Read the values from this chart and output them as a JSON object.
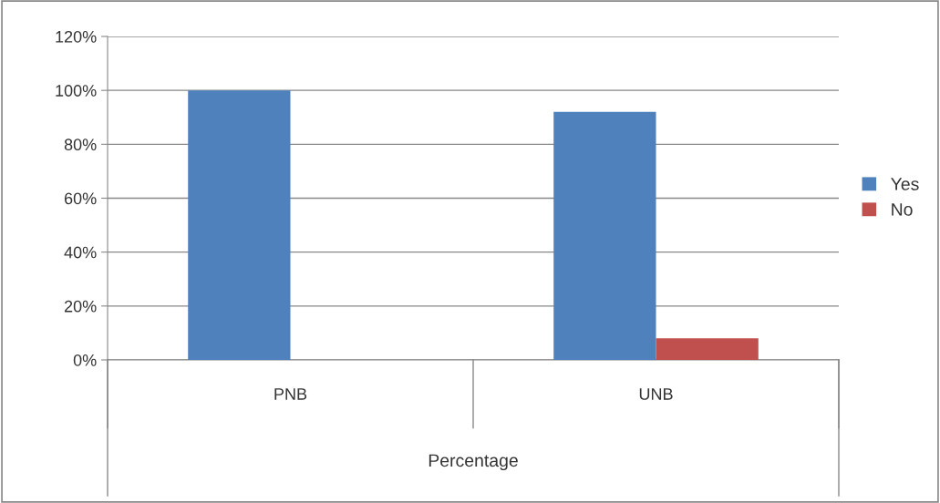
{
  "chart_data": {
    "type": "bar",
    "xlabel": "Percentage",
    "categories": [
      "PNB",
      "UNB"
    ],
    "series": [
      {
        "name": "Yes",
        "color": "#4f81bd",
        "values": [
          100,
          92
        ]
      },
      {
        "name": "No",
        "color": "#c0504d",
        "values": [
          0,
          8
        ]
      }
    ],
    "ylim": [
      0,
      120
    ],
    "yticks": [
      {
        "value": 0,
        "label": "0%"
      },
      {
        "value": 20,
        "label": "20%"
      },
      {
        "value": 40,
        "label": "40%"
      },
      {
        "value": 60,
        "label": "60%"
      },
      {
        "value": 80,
        "label": "80%"
      },
      {
        "value": 100,
        "label": "100%"
      },
      {
        "value": 120,
        "label": "120%"
      }
    ],
    "grid": "y",
    "legend": "right"
  }
}
